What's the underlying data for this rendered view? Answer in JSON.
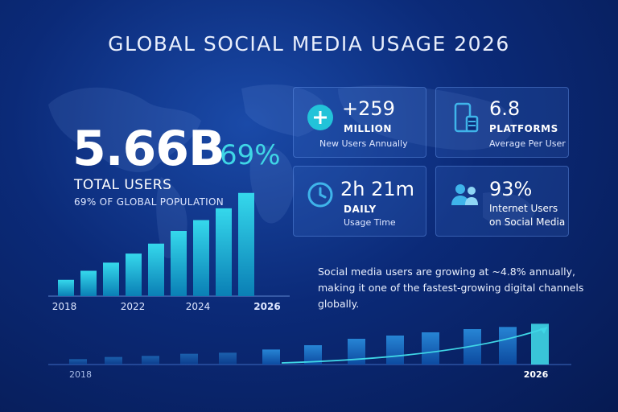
{
  "title": "GLOBAL SOCIAL MEDIA USAGE 2026",
  "hero": {
    "value": "5.66B",
    "percent": "69%",
    "label": "TOTAL USERS",
    "sublabel": "69% OF GLOBAL POPULATION"
  },
  "stats": [
    {
      "value": "+259",
      "unit": "MILLION",
      "sub": "New Users Annually",
      "icon": "plus-icon"
    },
    {
      "value": "6.8",
      "unit": "PLATFORMS",
      "sub": "Average Per User",
      "icon": "devices-icon"
    },
    {
      "value": "2h 21m",
      "unit": "DAILY",
      "sub": "Usage Time",
      "icon": "clock-icon"
    },
    {
      "value": "93%",
      "unit": "Internet Users",
      "sub": "on Social Media",
      "icon": "users-icon"
    }
  ],
  "statement": {
    "line1": "Social media users are growing at ~4.8% annually,",
    "line2": "making it one of the fastest-growing digital channels globally."
  },
  "chart_data": [
    {
      "type": "bar",
      "categories": [
        "",
        "2018",
        "",
        "",
        "2022",
        "",
        "2024",
        "",
        "2026"
      ],
      "values": [
        18,
        28,
        37,
        47,
        58,
        72,
        84,
        97,
        114
      ],
      "tick_labels": [
        "2018",
        "2022",
        "2024",
        "2026"
      ],
      "ylim": [
        0,
        120
      ],
      "colors": {
        "bar_top": "#35d8ec",
        "bar_bottom": "#0a7fb5"
      }
    },
    {
      "type": "bar",
      "categories": [
        "2018",
        "",
        "",
        "",
        "",
        "",
        "",
        "",
        "",
        "",
        "",
        "",
        "",
        "2026"
      ],
      "values": [
        5,
        7,
        8,
        10,
        11,
        14,
        18,
        24,
        27,
        30,
        33,
        35,
        38,
        45
      ],
      "tick_labels": [
        "2018",
        "2026"
      ],
      "ylim": [
        0,
        60
      ],
      "trend_arrow": true,
      "colors": {
        "bar": "#1e7fc7",
        "highlight": "#3fd6e6"
      }
    }
  ]
}
